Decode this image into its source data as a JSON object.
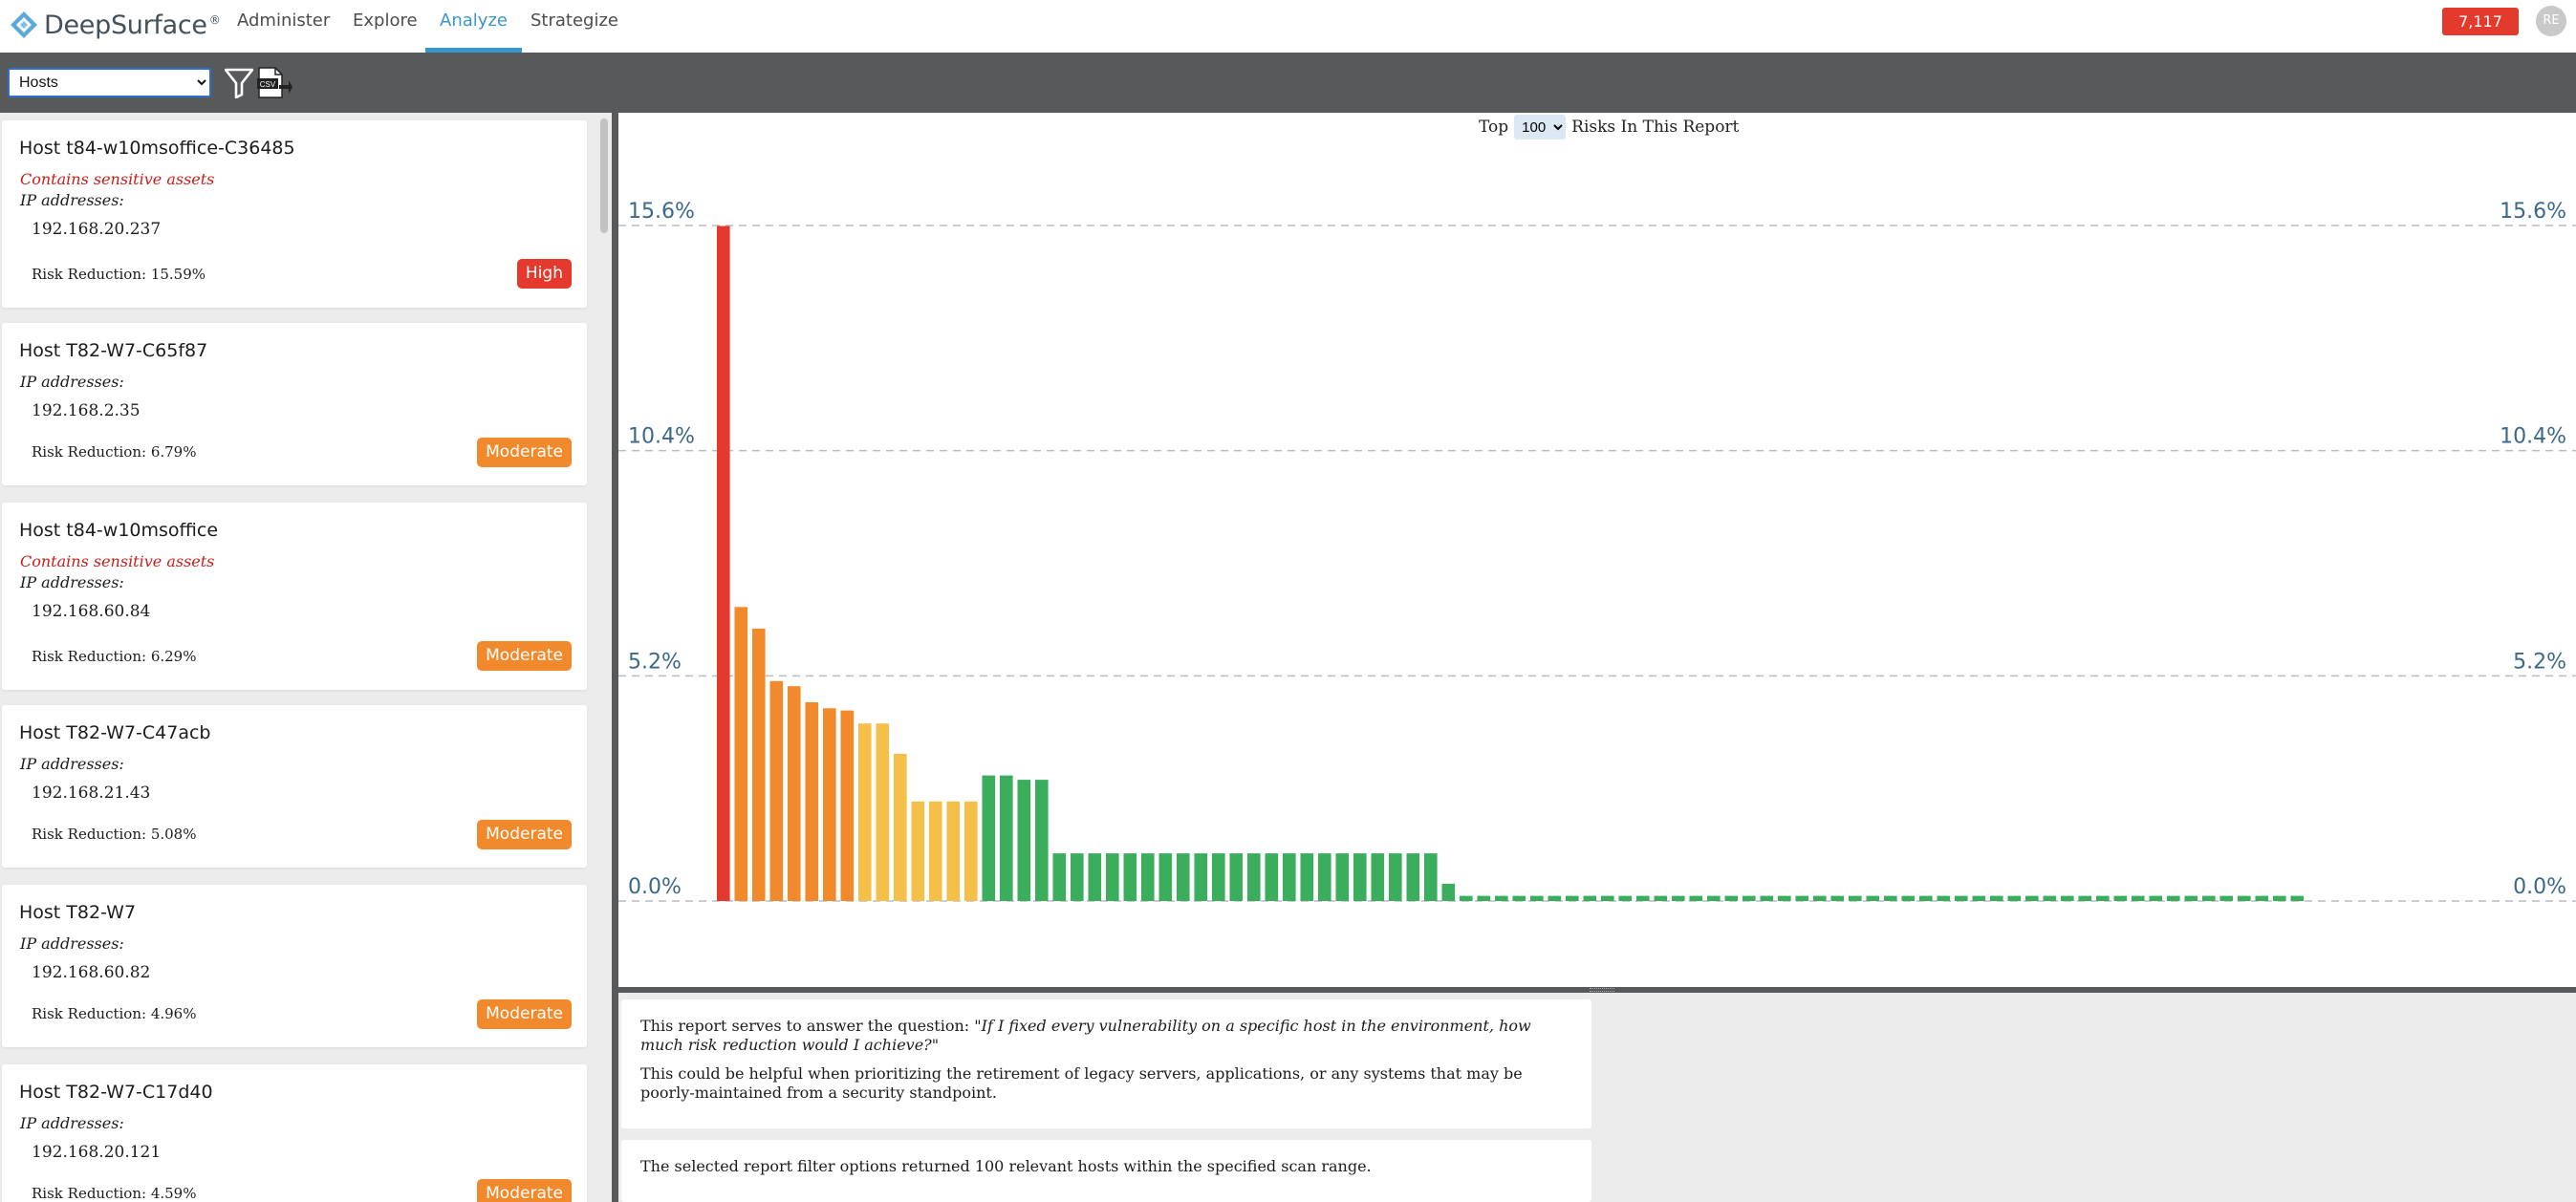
{
  "app": {
    "brand": "DeepSurface",
    "brand_mark": "®"
  },
  "nav": {
    "items": [
      {
        "label": "Administer"
      },
      {
        "label": "Explore"
      },
      {
        "label": "Analyze",
        "active": true
      },
      {
        "label": "Strategize"
      }
    ],
    "alert_count": "7,117",
    "avatar_initials": "RE"
  },
  "toolbar": {
    "report_select_value": "Hosts",
    "filter_icon": "filter-icon",
    "csv_export_icon": "csv-export-icon"
  },
  "hosts": [
    {
      "name": "Host t84-w10msoffice-C36485",
      "sensitive": "Contains sensitive assets",
      "ip_label": "IP addresses:",
      "ip": "192.168.20.237",
      "risk_reduction": "Risk Reduction: 15.59%",
      "badge": "High"
    },
    {
      "name": "Host T82-W7-C65f87",
      "sensitive": "",
      "ip_label": "IP addresses:",
      "ip": "192.168.2.35",
      "risk_reduction": "Risk Reduction: 6.79%",
      "badge": "Moderate"
    },
    {
      "name": "Host t84-w10msoffice",
      "sensitive": "Contains sensitive assets",
      "ip_label": "IP addresses:",
      "ip": "192.168.60.84",
      "risk_reduction": "Risk Reduction: 6.29%",
      "badge": "Moderate"
    },
    {
      "name": "Host T82-W7-C47acb",
      "sensitive": "",
      "ip_label": "IP addresses:",
      "ip": "192.168.21.43",
      "risk_reduction": "Risk Reduction: 5.08%",
      "badge": "Moderate"
    },
    {
      "name": "Host T82-W7",
      "sensitive": "",
      "ip_label": "IP addresses:",
      "ip": "192.168.60.82",
      "risk_reduction": "Risk Reduction: 4.96%",
      "badge": "Moderate"
    },
    {
      "name": "Host T82-W7-C17d40",
      "sensitive": "",
      "ip_label": "IP addresses:",
      "ip": "192.168.20.121",
      "risk_reduction": "Risk Reduction: 4.59%",
      "badge": "Moderate"
    }
  ],
  "badge_colors": {
    "High": "#e43a2e",
    "Moderate": "#f08a2c"
  },
  "chart_header": {
    "prefix": "Top",
    "top_value": "100",
    "suffix": "Risks In This Report"
  },
  "chart_data": {
    "type": "bar",
    "ylim": [
      0,
      15.6
    ],
    "yticks": [
      "0.0%",
      "5.2%",
      "10.4%",
      "15.6%"
    ],
    "ytick_values": [
      0,
      5.2,
      10.4,
      15.6
    ],
    "grid": true,
    "colors": {
      "critical": "#e43a2e",
      "high": "#f08a2c",
      "moderate": "#f4c04a",
      "low": "#3bae5e"
    },
    "values": [
      15.59,
      6.79,
      6.29,
      5.08,
      4.96,
      4.59,
      4.45,
      4.4,
      4.1,
      4.1,
      3.4,
      2.3,
      2.3,
      2.3,
      2.3,
      2.9,
      2.9,
      2.8,
      2.8,
      1.1,
      1.1,
      1.1,
      1.1,
      1.1,
      1.1,
      1.1,
      1.1,
      1.1,
      1.1,
      1.1,
      1.1,
      1.1,
      1.1,
      1.1,
      1.1,
      1.1,
      1.1,
      1.1,
      1.1,
      1.1,
      1.1,
      0.4,
      0.12,
      0.12,
      0.12,
      0.12,
      0.12,
      0.12,
      0.12,
      0.12,
      0.12,
      0.12,
      0.12,
      0.12,
      0.12,
      0.12,
      0.12,
      0.12,
      0.12,
      0.12,
      0.12,
      0.12,
      0.12,
      0.12,
      0.12,
      0.12,
      0.12,
      0.12,
      0.12,
      0.12,
      0.12,
      0.12,
      0.12,
      0.12,
      0.12,
      0.12,
      0.12,
      0.12,
      0.12,
      0.12,
      0.12,
      0.12,
      0.12,
      0.12,
      0.12,
      0.12,
      0.12,
      0.12,
      0.12,
      0.12
    ],
    "levels": [
      "critical",
      "high",
      "high",
      "high",
      "high",
      "high",
      "high",
      "high",
      "moderate",
      "moderate",
      "moderate",
      "moderate",
      "moderate",
      "moderate",
      "moderate",
      "low",
      "low",
      "low",
      "low",
      "low",
      "low",
      "low",
      "low",
      "low",
      "low",
      "low",
      "low",
      "low",
      "low",
      "low",
      "low",
      "low",
      "low",
      "low",
      "low",
      "low",
      "low",
      "low",
      "low",
      "low",
      "low",
      "low",
      "low",
      "low",
      "low",
      "low",
      "low",
      "low",
      "low",
      "low",
      "low",
      "low",
      "low",
      "low",
      "low",
      "low",
      "low",
      "low",
      "low",
      "low",
      "low",
      "low",
      "low",
      "low",
      "low",
      "low",
      "low",
      "low",
      "low",
      "low",
      "low",
      "low",
      "low",
      "low",
      "low",
      "low",
      "low",
      "low",
      "low",
      "low",
      "low",
      "low",
      "low",
      "low",
      "low",
      "low",
      "low",
      "low",
      "low",
      "low"
    ]
  },
  "description": {
    "question_prefix": "This report serves to answer the question:",
    "question": "\"If I fixed every vulnerability on a specific host in the environment, how much risk reduction would I achieve?\"",
    "help": "This could be helpful when prioritizing the retirement of legacy servers, applications, or any systems that may be poorly-maintained from a security standpoint.",
    "summary": "The selected report filter options returned 100 relevant hosts within the specified scan range."
  }
}
